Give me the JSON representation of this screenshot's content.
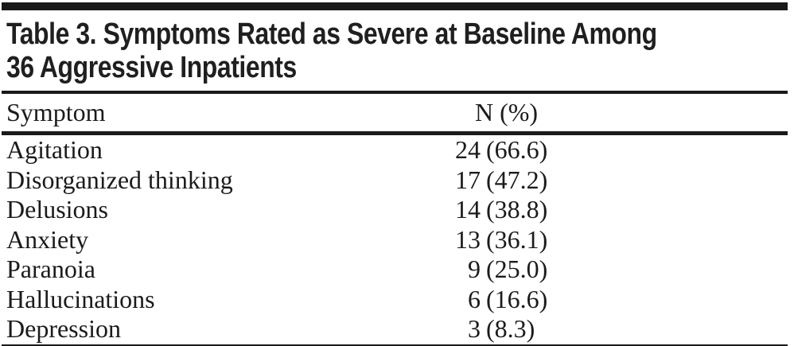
{
  "table": {
    "title_line1": "Table 3. Symptoms Rated as Severe at Baseline Among",
    "title_line2": "36 Aggressive Inpatients",
    "columns": [
      "Symptom",
      "N (%)"
    ],
    "rows": [
      {
        "symptom": "Agitation",
        "n": "24",
        "pct": "(66.6)"
      },
      {
        "symptom": "Disorganized thinking",
        "n": "17",
        "pct": "(47.2)"
      },
      {
        "symptom": "Delusions",
        "n": "14",
        "pct": "(38.8)"
      },
      {
        "symptom": "Anxiety",
        "n": "13",
        "pct": "(36.1)"
      },
      {
        "symptom": "Paranoia",
        "n": "9",
        "pct": "(25.0)"
      },
      {
        "symptom": "Hallucinations",
        "n": "6",
        "pct": "(16.6)"
      },
      {
        "symptom": "Depression",
        "n": "3",
        "pct": "(8.3)"
      }
    ],
    "colors": {
      "text": "#1b1b1b",
      "rule": "#1a1a1a",
      "background": "#ffffff"
    }
  },
  "chart_data": {
    "type": "table",
    "title": "Table 3. Symptoms Rated as Severe at Baseline Among 36 Aggressive Inpatients",
    "columns": [
      "Symptom",
      "N (%)"
    ],
    "categories": [
      "Agitation",
      "Disorganized thinking",
      "Delusions",
      "Anxiety",
      "Paranoia",
      "Hallucinations",
      "Depression"
    ],
    "series": [
      {
        "name": "N",
        "values": [
          24,
          17,
          14,
          13,
          9,
          6,
          3
        ]
      },
      {
        "name": "Percent",
        "values": [
          66.6,
          47.2,
          38.8,
          36.1,
          25.0,
          16.6,
          8.3
        ]
      }
    ]
  }
}
